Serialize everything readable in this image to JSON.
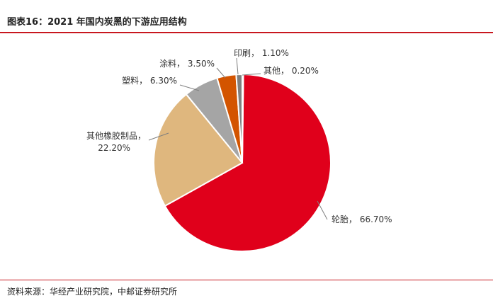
{
  "title": "图表16：2021 年国内炭黑的下游应用结构",
  "source": "资料来源：华经产业研究院，中邮证券研究所",
  "chart_data": {
    "type": "pie",
    "title": "图表16：2021 年国内炭黑的下游应用结构",
    "slices": [
      {
        "label": "轮胎",
        "value": 66.7,
        "value_text": "66.70%",
        "color": "#e0001b"
      },
      {
        "label": "其他橡胶制品",
        "value": 22.2,
        "value_text": "22.20%",
        "color": "#dfb77e"
      },
      {
        "label": "塑料",
        "value": 6.3,
        "value_text": "6.30%",
        "color": "#a5a5a5"
      },
      {
        "label": "涂料",
        "value": 3.5,
        "value_text": "3.50%",
        "color": "#d35400"
      },
      {
        "label": "印刷",
        "value": 1.1,
        "value_text": "1.10%",
        "color": "#7f7f7f"
      },
      {
        "label": "其他",
        "value": 0.2,
        "value_text": "0.20%",
        "color": "#1f3a64"
      }
    ],
    "label_separator": "，",
    "legend": "none"
  }
}
